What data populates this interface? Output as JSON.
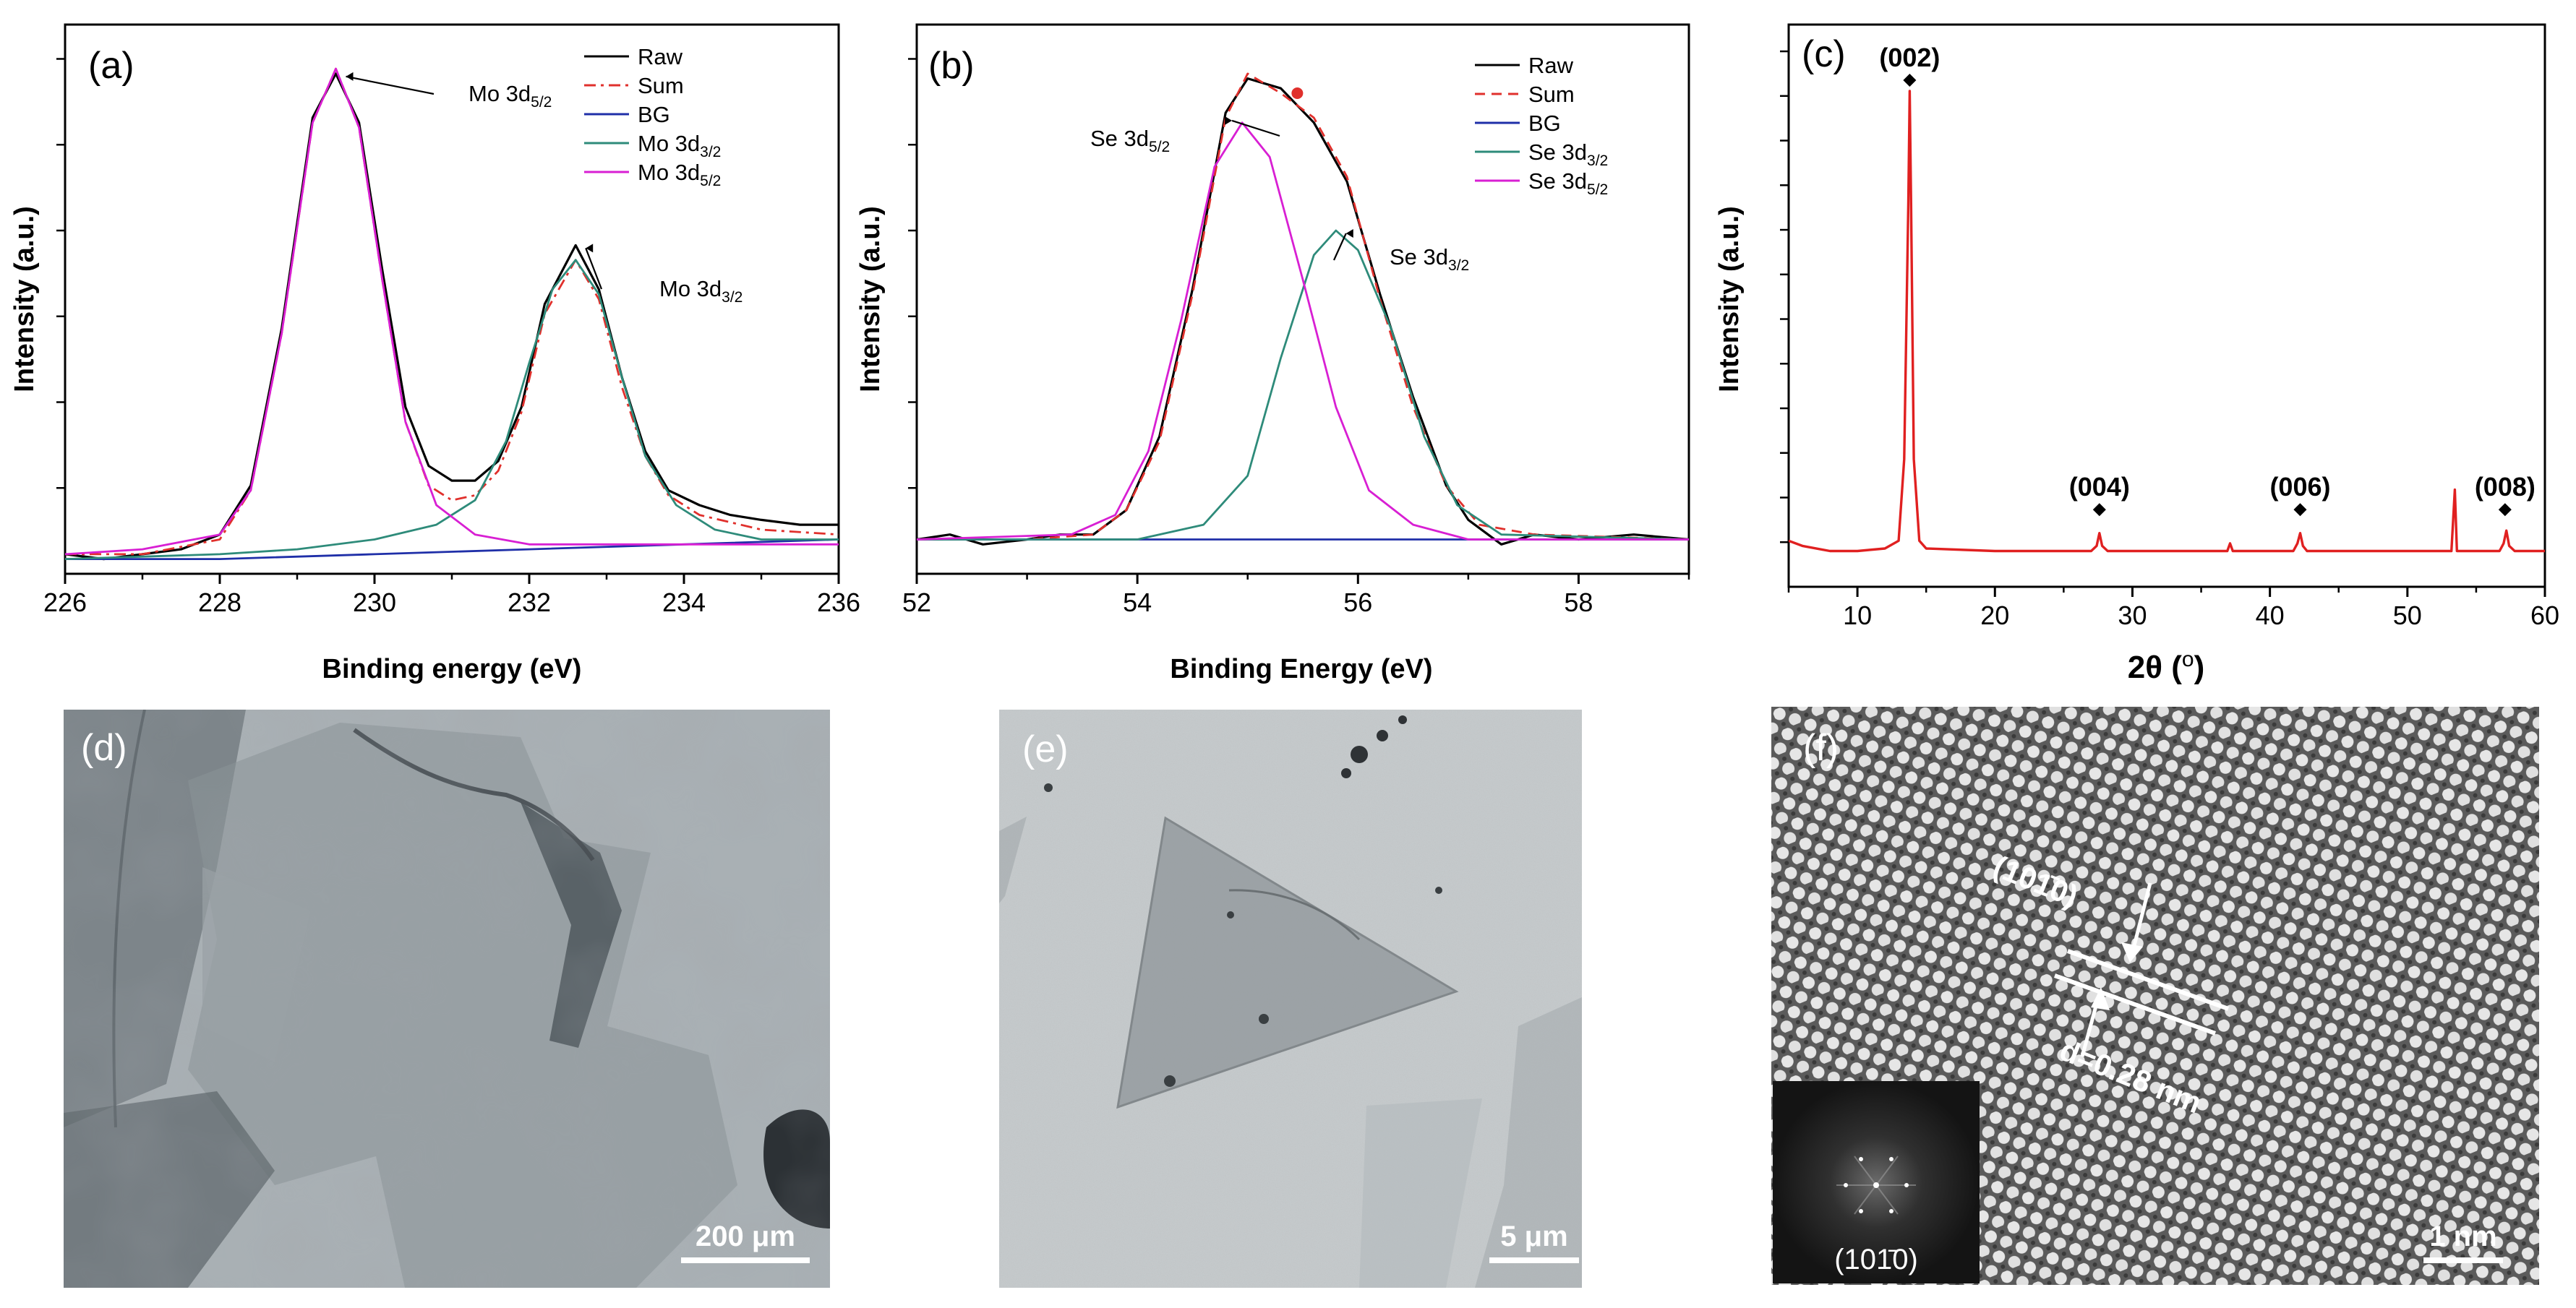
{
  "chart_data": [
    {
      "panel": "(a)",
      "type": "line",
      "title": "",
      "xlabel": "Binding energy (eV)",
      "ylabel": "Intensity (a.u.)",
      "xlim": [
        226,
        236
      ],
      "ylim": [
        0,
        1.12
      ],
      "xticks": [
        226,
        228,
        230,
        232,
        234,
        236
      ],
      "xtick_labels": [
        "226",
        "228",
        "230",
        "232",
        "234",
        "236"
      ],
      "legend": [
        "Raw",
        "Sum",
        "BG",
        "Mo 3d3/2",
        "Mo 3d5/2"
      ],
      "legend_position": "top-right",
      "series": [
        {
          "name": "Raw",
          "color": "#000000",
          "style": "solid",
          "points": [
            [
              226,
              0.04
            ],
            [
              226.5,
              0.03
            ],
            [
              227,
              0.04
            ],
            [
              227.5,
              0.05
            ],
            [
              228,
              0.08
            ],
            [
              228.4,
              0.18
            ],
            [
              228.8,
              0.5
            ],
            [
              229.2,
              0.93
            ],
            [
              229.5,
              1.02
            ],
            [
              229.8,
              0.92
            ],
            [
              230.1,
              0.62
            ],
            [
              230.4,
              0.34
            ],
            [
              230.7,
              0.22
            ],
            [
              231.0,
              0.19
            ],
            [
              231.3,
              0.19
            ],
            [
              231.6,
              0.23
            ],
            [
              231.9,
              0.34
            ],
            [
              232.2,
              0.55
            ],
            [
              232.6,
              0.67
            ],
            [
              232.9,
              0.58
            ],
            [
              233.2,
              0.4
            ],
            [
              233.5,
              0.25
            ],
            [
              233.8,
              0.17
            ],
            [
              234.2,
              0.14
            ],
            [
              234.6,
              0.12
            ],
            [
              235,
              0.11
            ],
            [
              235.5,
              0.1
            ],
            [
              236,
              0.1
            ]
          ]
        },
        {
          "name": "Sum",
          "color": "#e0302c",
          "style": "dashdot",
          "points": [
            [
              226,
              0.04
            ],
            [
              227,
              0.04
            ],
            [
              228,
              0.07
            ],
            [
              228.4,
              0.17
            ],
            [
              228.8,
              0.49
            ],
            [
              229.2,
              0.92
            ],
            [
              229.5,
              1.03
            ],
            [
              229.8,
              0.91
            ],
            [
              230.1,
              0.6
            ],
            [
              230.4,
              0.31
            ],
            [
              230.7,
              0.18
            ],
            [
              231.0,
              0.15
            ],
            [
              231.3,
              0.16
            ],
            [
              231.6,
              0.21
            ],
            [
              231.9,
              0.33
            ],
            [
              232.2,
              0.53
            ],
            [
              232.6,
              0.64
            ],
            [
              232.9,
              0.56
            ],
            [
              233.2,
              0.38
            ],
            [
              233.5,
              0.24
            ],
            [
              233.8,
              0.16
            ],
            [
              234.2,
              0.12
            ],
            [
              235,
              0.09
            ],
            [
              236,
              0.08
            ]
          ]
        },
        {
          "name": "BG",
          "color": "#1f2fa8",
          "style": "solid",
          "points": [
            [
              226,
              0.03
            ],
            [
              228,
              0.03
            ],
            [
              230,
              0.04
            ],
            [
              232,
              0.05
            ],
            [
              234,
              0.06
            ],
            [
              236,
              0.07
            ]
          ]
        },
        {
          "name": "Mo 3d3/2",
          "color": "#2e8b7a",
          "style": "solid",
          "points": [
            [
              226,
              0.03
            ],
            [
              228,
              0.04
            ],
            [
              229,
              0.05
            ],
            [
              230,
              0.07
            ],
            [
              230.8,
              0.1
            ],
            [
              231.3,
              0.15
            ],
            [
              231.7,
              0.27
            ],
            [
              232.0,
              0.43
            ],
            [
              232.3,
              0.58
            ],
            [
              232.6,
              0.64
            ],
            [
              232.9,
              0.57
            ],
            [
              233.2,
              0.4
            ],
            [
              233.5,
              0.24
            ],
            [
              233.9,
              0.14
            ],
            [
              234.4,
              0.09
            ],
            [
              235,
              0.07
            ],
            [
              236,
              0.07
            ]
          ]
        },
        {
          "name": "Mo 3d5/2",
          "color": "#d81fd3",
          "style": "solid",
          "points": [
            [
              226,
              0.04
            ],
            [
              227,
              0.05
            ],
            [
              228,
              0.08
            ],
            [
              228.4,
              0.17
            ],
            [
              228.8,
              0.49
            ],
            [
              229.2,
              0.92
            ],
            [
              229.5,
              1.03
            ],
            [
              229.8,
              0.91
            ],
            [
              230.1,
              0.6
            ],
            [
              230.4,
              0.31
            ],
            [
              230.8,
              0.14
            ],
            [
              231.3,
              0.08
            ],
            [
              232,
              0.06
            ],
            [
              233,
              0.06
            ],
            [
              234,
              0.06
            ],
            [
              236,
              0.06
            ]
          ]
        }
      ],
      "annotations": [
        {
          "text": "Mo 3d5/2",
          "base": "Mo 3d",
          "sub": "5/2",
          "x": 229.5,
          "y": 1.02
        },
        {
          "text": "Mo 3d3/2",
          "base": "Mo 3d",
          "sub": "3/2",
          "x": 232.6,
          "y": 0.67
        }
      ]
    },
    {
      "panel": "(b)",
      "type": "line",
      "title": "",
      "xlabel": "Binding Energy (eV)",
      "ylabel": "Intensity (a.u.)",
      "xlim": [
        52,
        59
      ],
      "ylim": [
        0,
        1.12
      ],
      "xticks": [
        52,
        54,
        56,
        58
      ],
      "xtick_labels": [
        "52",
        "54",
        "56",
        "58"
      ],
      "legend": [
        "Raw",
        "Sum",
        "BG",
        "Se 3d3/2",
        "Se 3d5/2"
      ],
      "legend_position": "top-right",
      "series": [
        {
          "name": "Raw",
          "color": "#000000",
          "style": "solid",
          "points": [
            [
              52,
              0.07
            ],
            [
              52.3,
              0.08
            ],
            [
              52.6,
              0.06
            ],
            [
              53,
              0.07
            ],
            [
              53.3,
              0.08
            ],
            [
              53.6,
              0.08
            ],
            [
              53.9,
              0.13
            ],
            [
              54.2,
              0.28
            ],
            [
              54.5,
              0.58
            ],
            [
              54.8,
              0.94
            ],
            [
              55.0,
              1.01
            ],
            [
              55.3,
              0.99
            ],
            [
              55.6,
              0.92
            ],
            [
              55.9,
              0.8
            ],
            [
              56.2,
              0.57
            ],
            [
              56.5,
              0.36
            ],
            [
              56.8,
              0.18
            ],
            [
              57.0,
              0.11
            ],
            [
              57.3,
              0.06
            ],
            [
              57.6,
              0.08
            ],
            [
              58,
              0.07
            ],
            [
              58.5,
              0.08
            ],
            [
              59,
              0.07
            ]
          ]
        },
        {
          "name": "Sum",
          "color": "#e0302c",
          "style": "dashed",
          "points": [
            [
              52,
              0.07
            ],
            [
              53,
              0.07
            ],
            [
              53.6,
              0.08
            ],
            [
              53.9,
              0.13
            ],
            [
              54.2,
              0.27
            ],
            [
              54.5,
              0.57
            ],
            [
              54.8,
              0.93
            ],
            [
              55.0,
              1.02
            ],
            [
              55.3,
              0.98
            ],
            [
              55.6,
              0.93
            ],
            [
              55.9,
              0.81
            ],
            [
              56.2,
              0.56
            ],
            [
              56.5,
              0.34
            ],
            [
              56.8,
              0.18
            ],
            [
              57.1,
              0.1
            ],
            [
              57.6,
              0.08
            ],
            [
              59,
              0.07
            ]
          ]
        },
        {
          "name": "BG",
          "color": "#1f2fa8",
          "style": "solid",
          "points": [
            [
              52,
              0.07
            ],
            [
              59,
              0.07
            ]
          ]
        },
        {
          "name": "Se 3d3/2",
          "color": "#2e8b7a",
          "style": "solid",
          "points": [
            [
              52,
              0.07
            ],
            [
              54,
              0.07
            ],
            [
              54.6,
              0.1
            ],
            [
              55.0,
              0.2
            ],
            [
              55.3,
              0.44
            ],
            [
              55.6,
              0.65
            ],
            [
              55.8,
              0.7
            ],
            [
              56.0,
              0.66
            ],
            [
              56.3,
              0.5
            ],
            [
              56.6,
              0.28
            ],
            [
              56.9,
              0.14
            ],
            [
              57.3,
              0.08
            ],
            [
              59,
              0.07
            ]
          ]
        },
        {
          "name": "Se 3d5/2",
          "color": "#d81fd3",
          "style": "solid",
          "points": [
            [
              52,
              0.07
            ],
            [
              53.4,
              0.08
            ],
            [
              53.8,
              0.12
            ],
            [
              54.1,
              0.25
            ],
            [
              54.4,
              0.52
            ],
            [
              54.7,
              0.83
            ],
            [
              54.95,
              0.92
            ],
            [
              55.2,
              0.85
            ],
            [
              55.5,
              0.6
            ],
            [
              55.8,
              0.34
            ],
            [
              56.1,
              0.17
            ],
            [
              56.5,
              0.1
            ],
            [
              57,
              0.07
            ],
            [
              59,
              0.07
            ]
          ]
        }
      ],
      "annotations": [
        {
          "text": "Se 3d5/2",
          "base": "Se 3d",
          "sub": "5/2",
          "x": 54.95,
          "y": 0.93
        },
        {
          "text": "Se 3d3/2",
          "base": "Se 3d",
          "sub": "3/2",
          "x": 55.8,
          "y": 0.7
        }
      ]
    },
    {
      "panel": "(c)",
      "type": "line",
      "title": "",
      "xlabel_base": "2θ (",
      "xlabel_sup": "o",
      "xlabel_close": ")",
      "ylabel": "Intensity (a.u.)",
      "xlim": [
        5,
        60
      ],
      "ylim": [
        0,
        1.1
      ],
      "xticks": [
        10,
        20,
        30,
        40,
        50,
        60
      ],
      "xtick_labels": [
        "10",
        "20",
        "30",
        "40",
        "50",
        "60"
      ],
      "series": [
        {
          "name": "XRD",
          "color": "#e02020",
          "style": "solid",
          "baseline": 0.07,
          "points": [
            [
              5,
              0.09
            ],
            [
              6,
              0.08
            ],
            [
              8,
              0.07
            ],
            [
              10,
              0.07
            ],
            [
              12,
              0.075
            ],
            [
              13,
              0.09
            ],
            [
              13.4,
              0.25
            ],
            [
              13.7,
              0.75
            ],
            [
              13.8,
              0.97
            ],
            [
              13.9,
              0.75
            ],
            [
              14.1,
              0.25
            ],
            [
              14.5,
              0.09
            ],
            [
              15,
              0.075
            ],
            [
              20,
              0.07
            ],
            [
              27,
              0.07
            ],
            [
              27.4,
              0.08
            ],
            [
              27.6,
              0.105
            ],
            [
              27.8,
              0.08
            ],
            [
              28.2,
              0.07
            ],
            [
              33,
              0.07
            ],
            [
              36.9,
              0.07
            ],
            [
              37.1,
              0.085
            ],
            [
              37.3,
              0.07
            ],
            [
              41.7,
              0.07
            ],
            [
              42.0,
              0.085
            ],
            [
              42.2,
              0.105
            ],
            [
              42.4,
              0.08
            ],
            [
              42.7,
              0.07
            ],
            [
              53.2,
              0.07
            ],
            [
              53.45,
              0.19
            ],
            [
              53.6,
              0.07
            ],
            [
              56.7,
              0.07
            ],
            [
              57.0,
              0.085
            ],
            [
              57.2,
              0.11
            ],
            [
              57.4,
              0.08
            ],
            [
              57.8,
              0.07
            ],
            [
              60,
              0.07
            ]
          ]
        }
      ],
      "peak_labels": [
        {
          "text": "(002)",
          "x": 13.8
        },
        {
          "text": "(004)",
          "x": 27.6
        },
        {
          "text": "(006)",
          "x": 42.2
        },
        {
          "text": "(008)",
          "x": 57.1
        }
      ]
    }
  ],
  "images": {
    "d": {
      "label": "(d)",
      "scale_bar": "200 μm"
    },
    "e": {
      "label": "(e)",
      "scale_bar": "5 μm"
    },
    "f": {
      "label": "(f)",
      "scale_bar": "1 nm",
      "plane_label": "(101̄0)",
      "d_spacing": "d=0.28 nm",
      "fft_label": "(101̄0)"
    }
  }
}
